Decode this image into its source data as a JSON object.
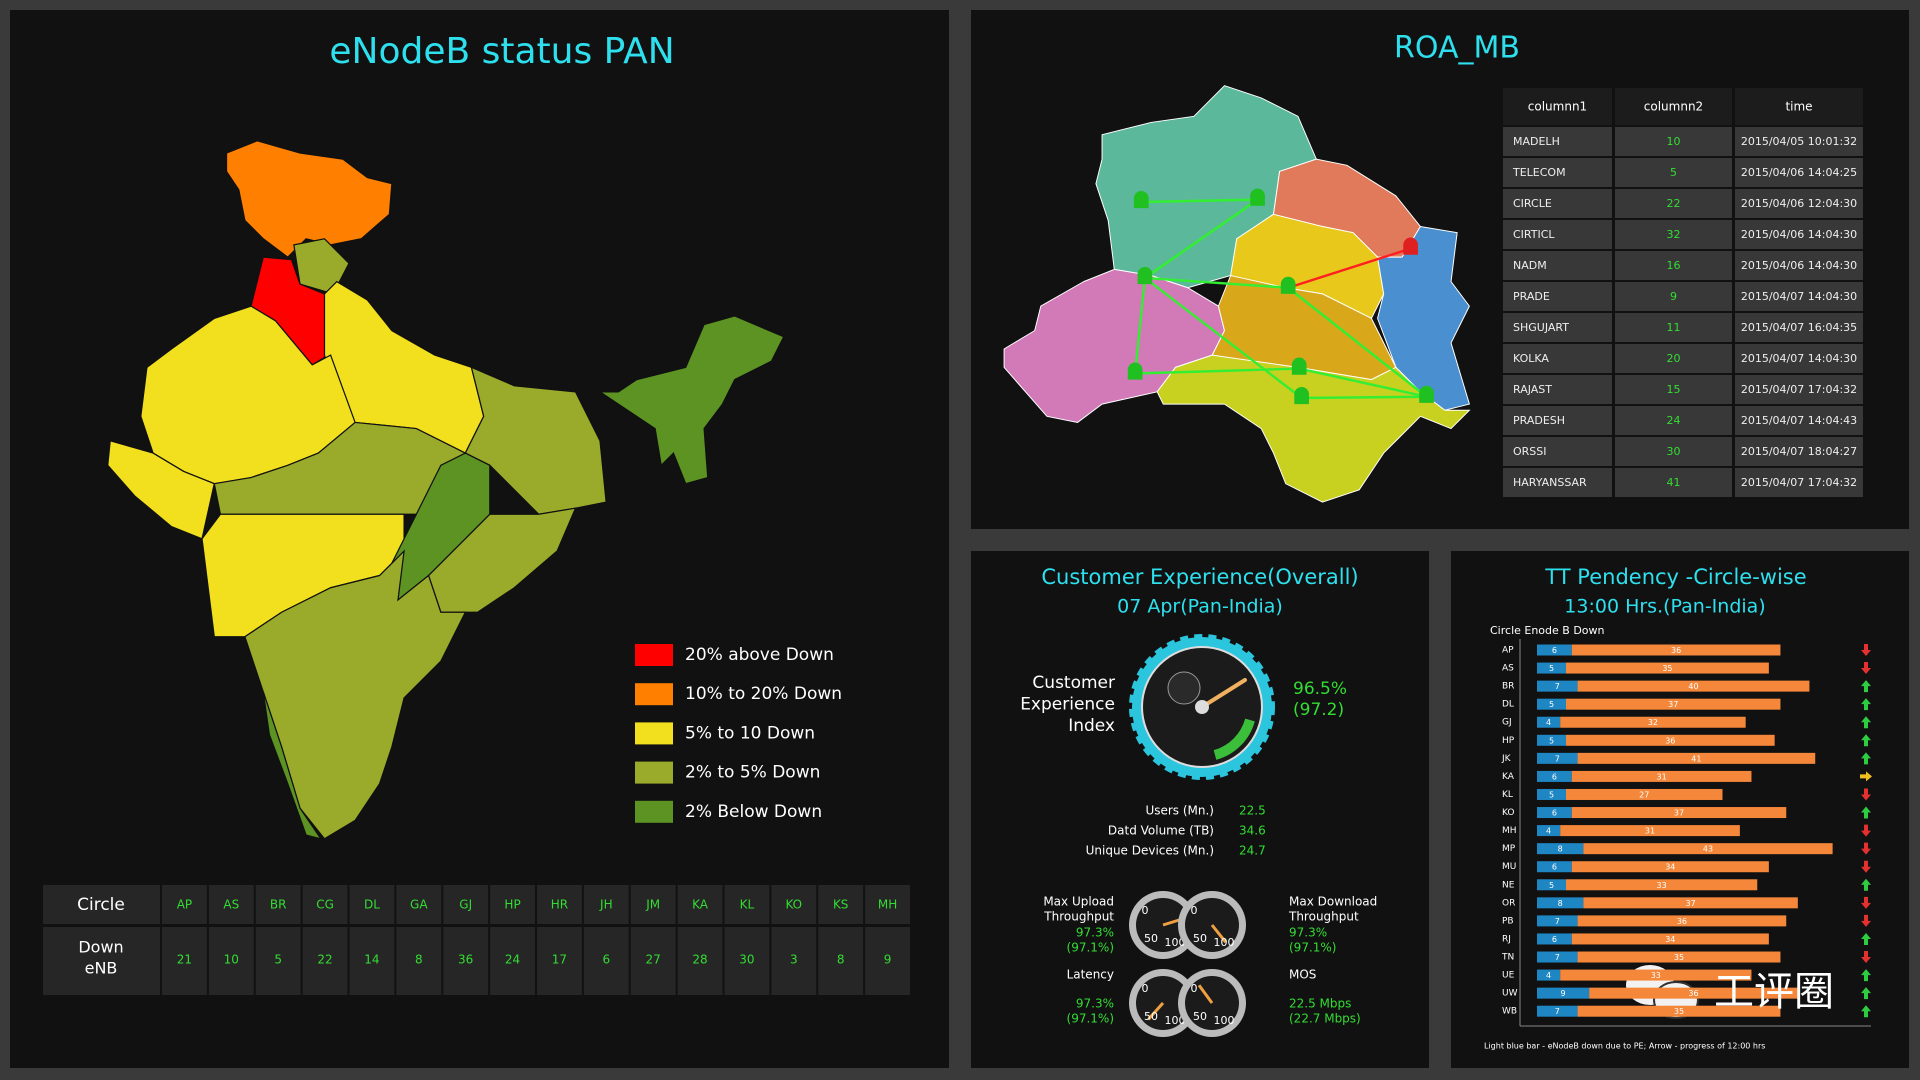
{
  "enodeb_panel": {
    "title": "eNodeB status PAN",
    "legend": [
      {
        "label": "20% above Down",
        "color": "#ff0000"
      },
      {
        "label": "10% to 20% Down",
        "color": "#ff8000"
      },
      {
        "label": "5% to 10 Down",
        "color": "#f2e01f"
      },
      {
        "label": "2% to 5% Down",
        "color": "#9aab2c"
      },
      {
        "label": "2% Below Down",
        "color": "#5c9322"
      }
    ],
    "table": {
      "header_label": "Circle",
      "row_label": [
        "Down",
        "eNB"
      ],
      "circles": [
        "AP",
        "AS",
        "BR",
        "CG",
        "DL",
        "GA",
        "GJ",
        "HP",
        "HR",
        "JH",
        "JM",
        "KA",
        "KL",
        "KO",
        "KS",
        "MH"
      ],
      "down_enb": [
        21,
        10,
        5,
        22,
        14,
        8,
        36,
        24,
        17,
        6,
        27,
        28,
        30,
        3,
        8,
        9
      ]
    }
  },
  "roa_panel": {
    "title": "ROA_MB",
    "columns": [
      "columnn1",
      "columnn2",
      "time"
    ],
    "rows": [
      [
        "MADELH",
        10,
        "2015/04/05 10:01:32"
      ],
      [
        "TELECOM",
        5,
        "2015/04/06 14:04:25"
      ],
      [
        "CIRCLE",
        22,
        "2015/04/06 12:04:30"
      ],
      [
        "CIRTICL",
        32,
        "2015/04/06 14:04:30"
      ],
      [
        "NADM",
        16,
        "2015/04/06 14:04:30"
      ],
      [
        "PRADE",
        9,
        "2015/04/07 14:04:30"
      ],
      [
        "SHGUJART",
        11,
        "2015/04/07 16:04:35"
      ],
      [
        "KOLKA",
        20,
        "2015/04/07 14:04:30"
      ],
      [
        "RAJAST",
        15,
        "2015/04/07 17:04:32"
      ],
      [
        "PRADESH",
        24,
        "2015/04/07 14:04:43"
      ],
      [
        "ORSSI",
        30,
        "2015/04/07 18:04:27"
      ],
      [
        "HARYANSSAR",
        41,
        "2015/04/07 17:04:32"
      ]
    ]
  },
  "cx_panel": {
    "title": "Customer Experience(Overall)",
    "subtitle": "07 Apr(Pan-India)",
    "index_label": [
      "Customer",
      "Experience",
      "Index"
    ],
    "index_value": "96.5%",
    "index_prev": "(97.2)",
    "stats": [
      {
        "label": "Users (Mn.)",
        "value": 22.5
      },
      {
        "label": "Datd Volume (TB)",
        "value": 34.6
      },
      {
        "label": "Unique Devices (Mn.)",
        "value": 24.7
      }
    ],
    "gauge_ticks": [
      "0",
      "50",
      "100"
    ],
    "kpis": [
      {
        "label": [
          "Max Upload",
          "Throughput"
        ],
        "value": "97.3%",
        "prev": "(97.1%)"
      },
      {
        "label": [
          "Max Download",
          "Throughput"
        ],
        "value": "97.3%",
        "prev": "(97.1%)"
      },
      {
        "label": [
          "Latency"
        ],
        "value": "97.3%",
        "prev": "(97.1%)"
      },
      {
        "label": [
          "MOS"
        ],
        "value": "22.5 Mbps",
        "prev": "(22.7 Mbps)"
      }
    ]
  },
  "tt_panel": {
    "title": "TT Pendency -Circle-wise",
    "subtitle": "13:00 Hrs.(Pan-India)",
    "axis_label": "Circle Enode B Down",
    "footnote": "Light blue bar - eNodeB down due to PE; Arrow - progress of 12:00 hrs",
    "chart_data": {
      "type": "stacked-bar-horizontal",
      "categories": [
        "AP",
        "AS",
        "BR",
        "DL",
        "GJ",
        "HP",
        "JK",
        "KA",
        "KL",
        "KO",
        "MH",
        "MP",
        "MU",
        "NE",
        "OR",
        "PB",
        "RJ",
        "TN",
        "UE",
        "UW",
        "WB"
      ],
      "series": [
        {
          "color": "#1f86c4",
          "values": [
            6,
            5,
            7,
            5,
            4,
            5,
            7,
            6,
            5,
            6,
            4,
            8,
            6,
            5,
            8,
            7,
            6,
            7,
            4,
            9,
            7
          ]
        },
        {
          "color": "#f5873b",
          "values": [
            36,
            35,
            40,
            37,
            32,
            36,
            41,
            31,
            27,
            37,
            31,
            43,
            34,
            33,
            37,
            36,
            34,
            35,
            33,
            36,
            35
          ]
        }
      ],
      "xlim": [
        0,
        54
      ],
      "arrows": [
        "down",
        "down",
        "up",
        "up",
        "up",
        "up",
        "up",
        "right",
        "down",
        "up",
        "down",
        "down",
        "down",
        "up",
        "down",
        "down",
        "up",
        "down",
        "up",
        "up",
        "up"
      ]
    }
  },
  "watermark": "工评圈"
}
